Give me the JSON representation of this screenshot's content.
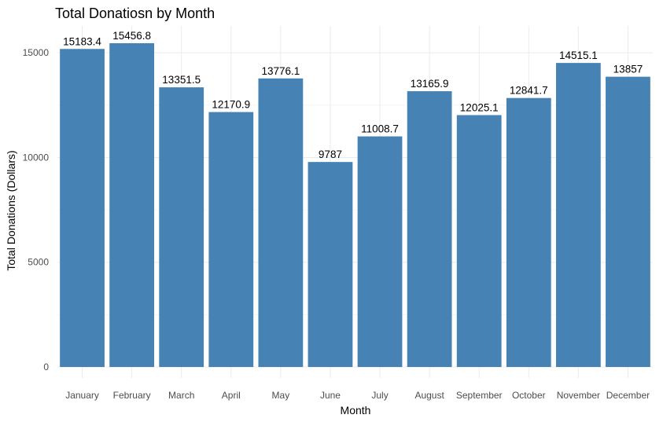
{
  "chart_data": {
    "type": "bar",
    "title": "Total Donatiosn by Month",
    "xlabel": "Month",
    "ylabel": "Total Donations (Dollars)",
    "categories": [
      "January",
      "February",
      "March",
      "April",
      "May",
      "June",
      "July",
      "August",
      "September",
      "October",
      "November",
      "December"
    ],
    "values": [
      15183.4,
      15456.8,
      13351.5,
      12170.9,
      13776.1,
      9787,
      11008.7,
      13165.9,
      12025.1,
      12841.7,
      14515.1,
      13857
    ],
    "value_labels": [
      "15183.4",
      "15456.8",
      "13351.5",
      "12170.9",
      "13776.1",
      "9787",
      "11008.7",
      "13165.9",
      "12025.1",
      "12841.7",
      "14515.1",
      "13857"
    ],
    "y_ticks": [
      0,
      5000,
      10000,
      15000
    ],
    "y_tick_labels": [
      "0",
      "5000",
      "10000",
      "15000"
    ],
    "ylim": [
      0,
      15456.8
    ],
    "grid": true,
    "legend": "none",
    "bar_color": "#4682B4"
  }
}
